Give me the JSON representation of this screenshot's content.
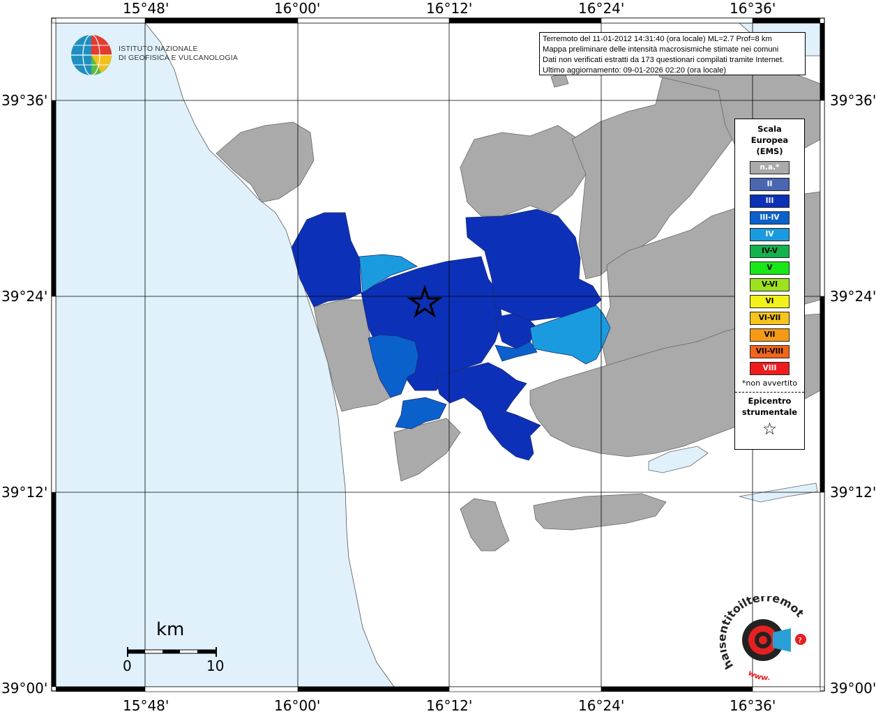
{
  "map": {
    "lon_ticks": [
      "15°48'",
      "16°00'",
      "16°12'",
      "16°24'",
      "16°36'"
    ],
    "lat_ticks": [
      "39°36'",
      "39°24'",
      "39°12'",
      "39°00'"
    ]
  },
  "info": {
    "line1": "Terremoto del 11-01-2012 14:31:40 (ora locale) ML=2.7 Prof=8 km",
    "line2": "Mappa preliminare delle intensità macrosismiche stimate nei comuni",
    "line3": "Dati non verificati estratti da 173 questionari compilati tramite Internet.",
    "line4": "Ultimo aggiornamento: 09-01-2026 02:20 (ora locale)"
  },
  "logo": {
    "line1": "ISTITUTO NAZIONALE",
    "line2": "DI GEOFISICA E VULCANOLOGIA"
  },
  "legend": {
    "title": "Scala\nEuropea\n(EMS)",
    "items": [
      {
        "label": "n.a.*",
        "color": "#aaaaaa",
        "text_color": "#ffffff"
      },
      {
        "label": "II",
        "color": "#4a66b0",
        "text_color": "#ffffff"
      },
      {
        "label": "III",
        "color": "#0c31b8",
        "text_color": "#ffffff"
      },
      {
        "label": "III-IV",
        "color": "#0b61cc",
        "text_color": "#ffffff"
      },
      {
        "label": "IV",
        "color": "#1a9be0",
        "text_color": "#ffffff"
      },
      {
        "label": "IV-V",
        "color": "#12b34a",
        "text_color": "#000000"
      },
      {
        "label": "V",
        "color": "#18e818",
        "text_color": "#000000"
      },
      {
        "label": "V-VI",
        "color": "#9ce21e",
        "text_color": "#000000"
      },
      {
        "label": "VI",
        "color": "#f2f21a",
        "text_color": "#000000"
      },
      {
        "label": "VI-VII",
        "color": "#f6c41c",
        "text_color": "#000000"
      },
      {
        "label": "VII",
        "color": "#f59a15",
        "text_color": "#000000"
      },
      {
        "label": "VII-VIII",
        "color": "#f2661a",
        "text_color": "#000000"
      },
      {
        "label": "VIII",
        "color": "#ee1c1c",
        "text_color": "#ffffff"
      }
    ],
    "note": "*non avvertito",
    "epicenter_title": "Epicentro\nstrumentale",
    "epicenter_symbol": "☆"
  },
  "scale": {
    "unit": "km",
    "min_label": "0",
    "max_label": "10"
  },
  "haisentito": {
    "text": "haisentitoilterremoto.it",
    "url_text": "www."
  },
  "colors": {
    "sea": "#e0f1fb",
    "land": "#ffffff",
    "na_gray": "#aaaaaa",
    "ems_II": "#4a66b0",
    "ems_III": "#0c31b8",
    "ems_III_IV": "#0b61cc",
    "ems_IV": "#1a9be0"
  }
}
